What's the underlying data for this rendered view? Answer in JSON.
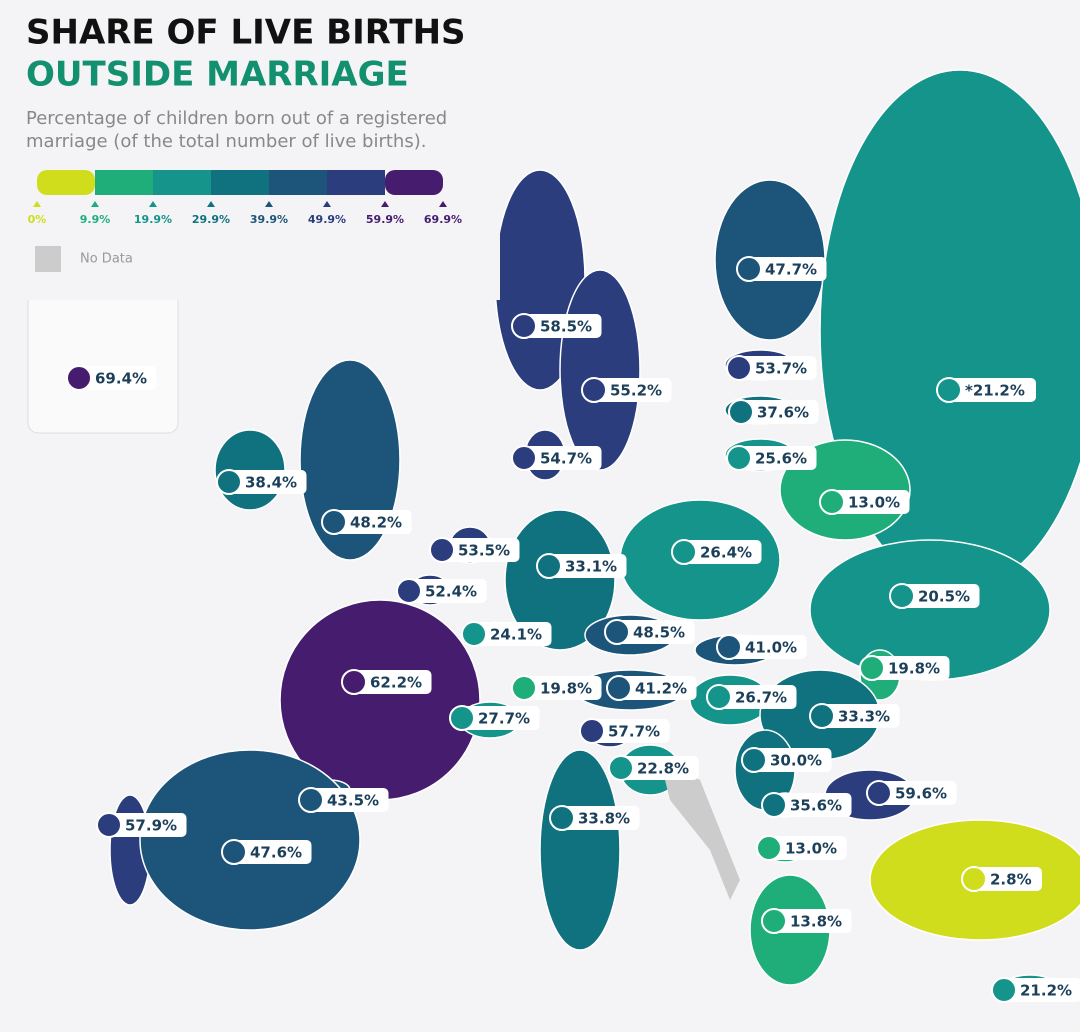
{
  "title": [
    "SHARE OF LIVE BIRTHS",
    "OUTSIDE MARRIAGE"
  ],
  "subtitle": [
    "Percentage of children born out of a registered",
    "marriage (of the total number of live births)."
  ],
  "legend": {
    "ticks": [
      {
        "value": 0,
        "label": "0%"
      },
      {
        "value": 9.9,
        "label": "9.9%"
      },
      {
        "value": 19.9,
        "label": "19.9%"
      },
      {
        "value": 29.9,
        "label": "29.9%"
      },
      {
        "value": 39.9,
        "label": "39.9%"
      },
      {
        "value": 49.9,
        "label": "49.9%"
      },
      {
        "value": 59.9,
        "label": "59.9%"
      },
      {
        "value": 69.9,
        "label": "69.9%"
      }
    ],
    "colors": [
      "#cfdd1c",
      "#1fae7a",
      "#14948a",
      "#11727f",
      "#1c5579",
      "#2b3d7c",
      "#461d6e"
    ],
    "no_data": "No Data",
    "no_data_color": "#cccccc"
  },
  "regions": [
    {
      "value": 69.4,
      "label": "69.4%"
    },
    {
      "value": 58.5,
      "label": "58.5%"
    },
    {
      "value": 47.7,
      "label": "47.7%"
    },
    {
      "value": 55.2,
      "label": "55.2%"
    },
    {
      "value": 53.7,
      "label": "53.7%"
    },
    {
      "value": 21.2,
      "label": "*21.2%"
    },
    {
      "value": 37.6,
      "label": "37.6%"
    },
    {
      "value": 54.7,
      "label": "54.7%"
    },
    {
      "value": 25.6,
      "label": "25.6%"
    },
    {
      "value": 38.4,
      "label": "38.4%"
    },
    {
      "value": 13.0,
      "label": "13.0%"
    },
    {
      "value": 48.2,
      "label": "48.2%"
    },
    {
      "value": 53.5,
      "label": "53.5%"
    },
    {
      "value": 33.1,
      "label": "33.1%"
    },
    {
      "value": 26.4,
      "label": "26.4%"
    },
    {
      "value": 52.4,
      "label": "52.4%"
    },
    {
      "value": 20.5,
      "label": "20.5%"
    },
    {
      "value": 24.1,
      "label": "24.1%"
    },
    {
      "value": 48.5,
      "label": "48.5%"
    },
    {
      "value": 41.0,
      "label": "41.0%"
    },
    {
      "value": 19.8,
      "label": "19.8%"
    },
    {
      "value": 62.2,
      "label": "62.2%"
    },
    {
      "value": 19.8,
      "label": "19.8%"
    },
    {
      "value": 41.2,
      "label": "41.2%"
    },
    {
      "value": 26.7,
      "label": "26.7%"
    },
    {
      "value": 33.3,
      "label": "33.3%"
    },
    {
      "value": 27.7,
      "label": "27.7%"
    },
    {
      "value": 57.7,
      "label": "57.7%"
    },
    {
      "value": 30.0,
      "label": "30.0%"
    },
    {
      "value": 22.8,
      "label": "22.8%"
    },
    {
      "value": 59.6,
      "label": "59.6%"
    },
    {
      "value": 43.5,
      "label": "43.5%"
    },
    {
      "value": 35.6,
      "label": "35.6%"
    },
    {
      "value": 57.9,
      "label": "57.9%"
    },
    {
      "value": 33.8,
      "label": "33.8%"
    },
    {
      "value": 47.6,
      "label": "47.6%"
    },
    {
      "value": 13.0,
      "label": "13.0%"
    },
    {
      "value": 2.8,
      "label": "2.8%"
    },
    {
      "value": 13.8,
      "label": "13.8%"
    },
    {
      "value": 21.2,
      "label": "21.2%"
    }
  ]
}
